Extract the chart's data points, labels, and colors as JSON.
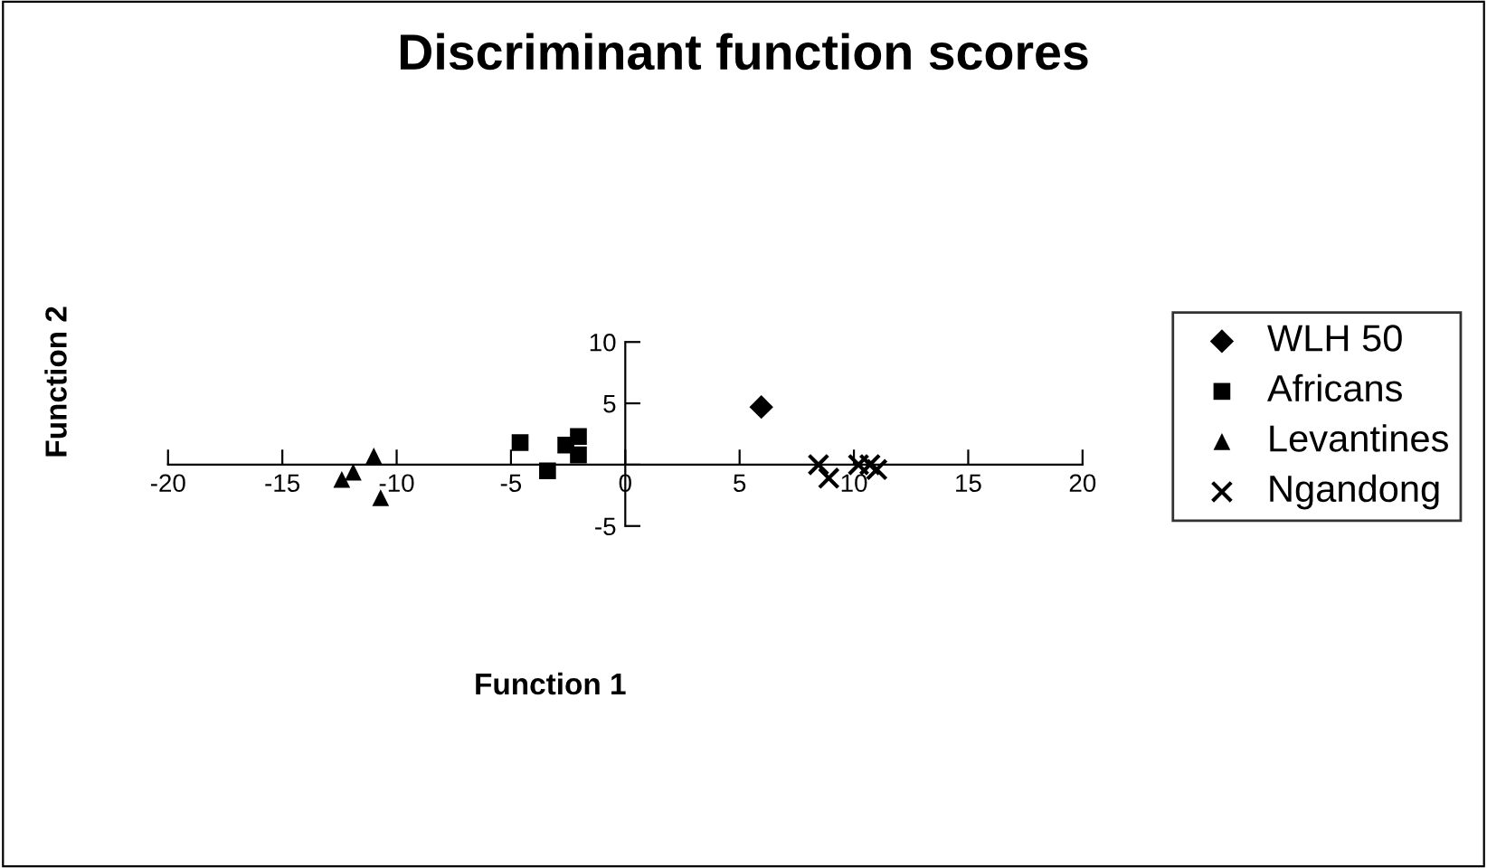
{
  "chart_data": {
    "type": "scatter",
    "title": "Discriminant function scores",
    "xlabel": "Function 1",
    "ylabel": "Function 2",
    "xlim": [
      -20,
      20
    ],
    "ylim": [
      -5,
      10
    ],
    "xticks": [
      -20,
      -15,
      -10,
      -5,
      0,
      5,
      10,
      15,
      20
    ],
    "yticks": [
      -5,
      {
        "value": 0,
        "label": null
      },
      5,
      10
    ],
    "grid": false,
    "legend": "right",
    "series": [
      {
        "name": "WLH 50",
        "color": "#000000",
        "marker": "diamond",
        "x": [
          5.95
        ],
        "values": [
          4.7
        ]
      },
      {
        "name": "Africans",
        "color": "#000000",
        "marker": "square",
        "x": [
          -4.6,
          -2.05,
          -2.6,
          -3.4,
          -2.05
        ],
        "values": [
          1.8,
          2.3,
          1.6,
          -0.5,
          0.8
        ]
      },
      {
        "name": "Levantines",
        "color": "#000000",
        "marker": "triangle",
        "x": [
          -11.0,
          -11.9,
          -12.4,
          -10.7
        ],
        "values": [
          0.7,
          -0.6,
          -1.2,
          -2.7
        ]
      },
      {
        "name": "Ngandong",
        "color": "#000000",
        "marker": "cross",
        "x": [
          8.45,
          8.9,
          10.2,
          11.0,
          10.7
        ],
        "values": [
          0,
          -1.1,
          0,
          -0.4,
          0
        ]
      }
    ]
  }
}
